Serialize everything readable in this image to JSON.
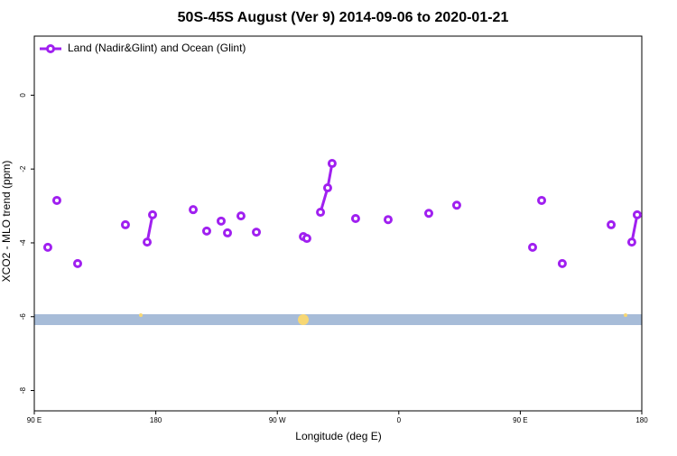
{
  "chart_data": {
    "type": "line",
    "title": "50S-45S August (Ver 9)   2014-09-06 to 2020-01-21",
    "x_label": "Longitude (deg E)",
    "y_label": "XCO2 - MLO trend (ppm)",
    "xlim": [
      90,
      540
    ],
    "xticks": [
      {
        "value": 90,
        "label": "90 E"
      },
      {
        "value": 180,
        "label": "180"
      },
      {
        "value": 270,
        "label": "90 W"
      },
      {
        "value": 360,
        "label": "0"
      },
      {
        "value": 450,
        "label": "90 E"
      },
      {
        "value": 540,
        "label": "180"
      }
    ],
    "ylim": [
      -8.55,
      1.6
    ],
    "yticks": [
      0,
      -2,
      -4,
      -6,
      -8
    ],
    "legend": "top-left",
    "series": [
      {
        "name": "Land (Nadir&Glint) and Ocean (Glint)",
        "color": "#a020f0",
        "x": [
          100.0,
          null,
          106.7,
          null,
          122.1,
          null,
          157.5,
          null,
          173.6,
          177.6,
          null,
          207.7,
          null,
          217.7,
          null,
          228.4,
          null,
          233.1,
          null,
          243.1,
          null,
          254.5,
          null,
          289.3,
          291.9,
          null,
          302.0,
          307.3,
          310.6,
          null,
          328.0,
          null,
          352.1,
          null,
          382.2,
          null,
          402.9,
          null,
          459.1,
          null,
          465.8,
          null,
          481.1,
          null,
          517.3,
          null,
          532.6,
          536.6
        ],
        "values": [
          -4.12,
          null,
          -2.85,
          null,
          -4.56,
          null,
          -3.51,
          null,
          -3.98,
          -3.24,
          null,
          -3.1,
          null,
          -3.68,
          null,
          -3.41,
          null,
          -3.73,
          null,
          -3.27,
          null,
          -3.71,
          null,
          -3.83,
          -3.88,
          null,
          -3.17,
          -2.51,
          -1.85,
          null,
          -3.34,
          null,
          -3.37,
          null,
          -3.2,
          null,
          -2.98,
          null,
          -4.12,
          null,
          -2.85,
          null,
          -4.56,
          null,
          -3.51,
          null,
          -3.98,
          -3.24
        ]
      }
    ]
  }
}
